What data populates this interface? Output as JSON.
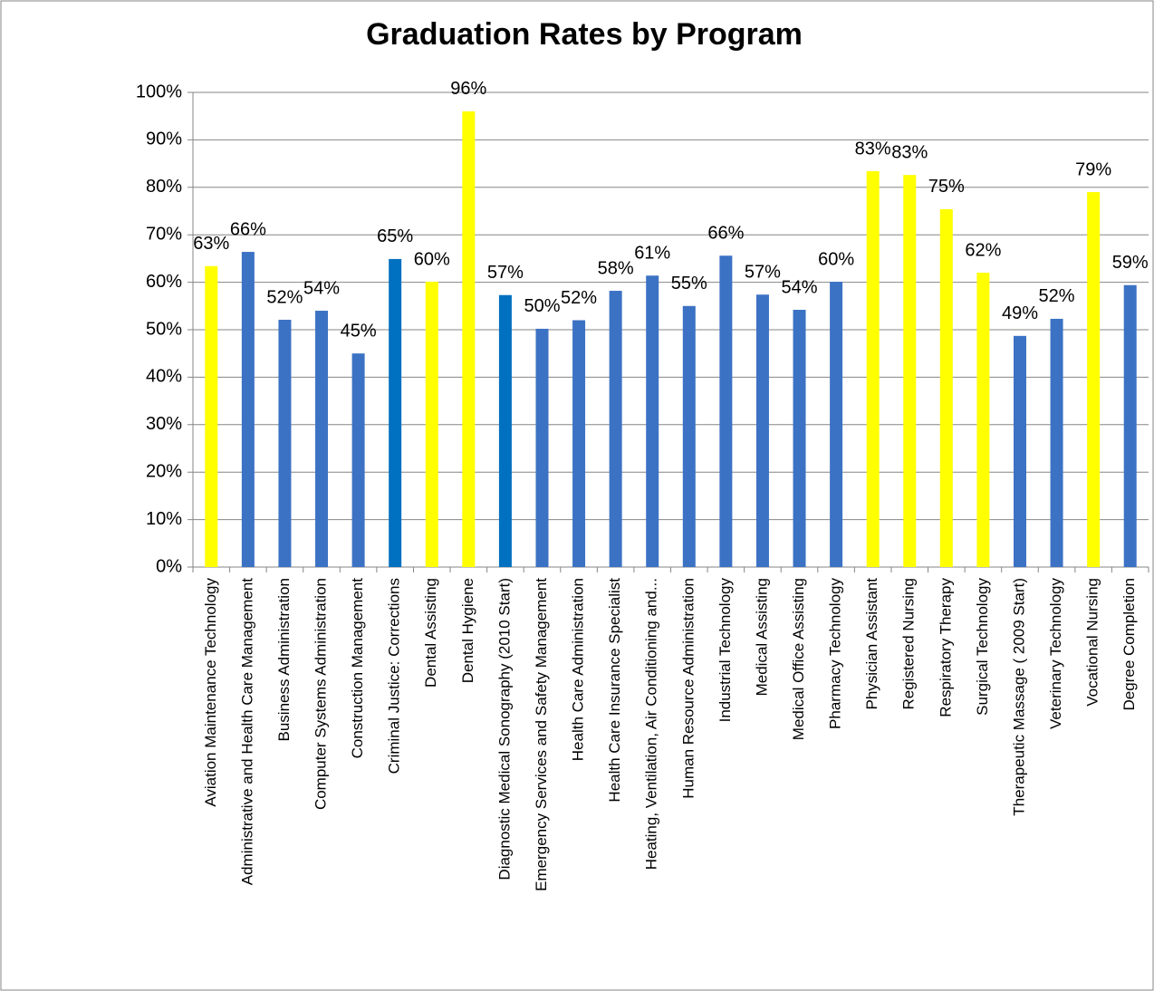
{
  "chart_data": {
    "type": "bar",
    "title": "Graduation Rates by Program",
    "categories": [
      "Aviation Maintenance Technology",
      "Administrative and Health Care Management",
      "Business Administration",
      "Computer Systems Administration",
      "Construction Management",
      "Criminal Justice: Corrections",
      "Dental Assisting",
      "Dental Hygiene",
      "Diagnostic Medical Sonography (2010 Start)",
      "Emergency Services and Safety Management",
      "Health Care Administration",
      "Health Care Insurance Specialist",
      "Heating, Ventilation, Air Conditioning and...",
      "Human Resource Administration",
      "Industrial Technology",
      "Medical Assisting",
      "Medical Office Assisting",
      "Pharmacy Technology",
      "Physician Assistant",
      "Registered Nursing",
      "Respiratory Therapy",
      "Surgical Technology",
      "Therapeutic Massage ( 2009 Start)",
      "Veterinary Technology",
      "Vocational Nursing",
      "Degree Completion"
    ],
    "values": [
      63.4,
      66.4,
      52.1,
      54,
      45,
      64.9,
      60.1,
      96,
      57.3,
      50.2,
      52,
      58.2,
      61.4,
      55,
      65.6,
      57.4,
      54.2,
      60.1,
      83.4,
      82.6,
      75.4,
      62,
      48.7,
      52.3,
      79,
      59.4
    ],
    "value_labels": [
      "63%",
      "66%",
      "52%",
      "54%",
      "45%",
      "65%",
      "60%",
      "96%",
      "57%",
      "50%",
      "52%",
      "58%",
      "61%",
      "55%",
      "66%",
      "57%",
      "54%",
      "60%",
      "83%",
      "83%",
      "75%",
      "62%",
      "49%",
      "52%",
      "79%",
      "59%"
    ],
    "colors": [
      "#ffff00",
      "#3c72c4",
      "#3c72c4",
      "#3c72c4",
      "#3c72c4",
      "#0070c0",
      "#ffff00",
      "#ffff00",
      "#0070c0",
      "#3c72c4",
      "#3c72c4",
      "#3c72c4",
      "#3c72c4",
      "#3c72c4",
      "#3c72c4",
      "#3c72c4",
      "#3c72c4",
      "#3c72c4",
      "#ffff00",
      "#ffff00",
      "#ffff00",
      "#ffff00",
      "#3c72c4",
      "#3c72c4",
      "#ffff00",
      "#3c72c4"
    ],
    "ylim": [
      0,
      100
    ],
    "yticks": [
      {
        "value": 0,
        "label": "0%"
      },
      {
        "value": 10,
        "label": "10%"
      },
      {
        "value": 20,
        "label": "20%"
      },
      {
        "value": 30,
        "label": "30%"
      },
      {
        "value": 40,
        "label": "40%"
      },
      {
        "value": 50,
        "label": "50%"
      },
      {
        "value": 60,
        "label": "60%"
      },
      {
        "value": 70,
        "label": "70%"
      },
      {
        "value": 80,
        "label": "80%"
      },
      {
        "value": 90,
        "label": "90%"
      },
      {
        "value": 100,
        "label": "100%"
      }
    ],
    "grid": true
  }
}
